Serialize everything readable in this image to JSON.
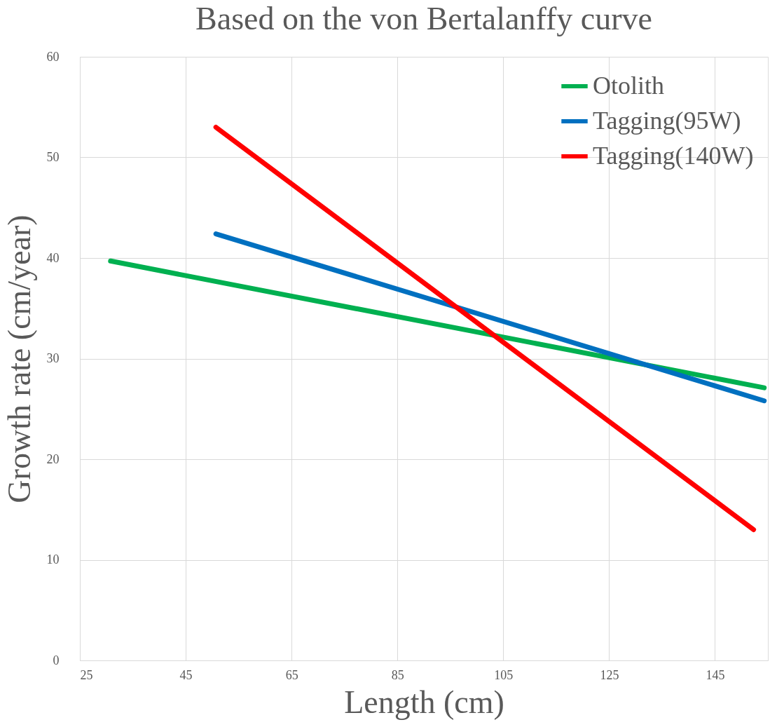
{
  "chart_data": {
    "type": "line",
    "title": "Based on the von Bertalanffy curve",
    "xlabel": "Length (cm)",
    "ylabel": "Growth rate (cm/year)",
    "xlim": [
      25,
      155
    ],
    "xticks": [
      25,
      45,
      65,
      85,
      105,
      125,
      145
    ],
    "ylim": [
      0,
      60
    ],
    "yticks": [
      0,
      10,
      20,
      30,
      40,
      50,
      60
    ],
    "grid": true,
    "legend": "top right",
    "marker": "none",
    "line_style": "solid",
    "series": [
      {
        "name": "Otolith",
        "color": "#00b050",
        "x": [
          30.8,
          154.3
        ],
        "values": [
          39.7,
          27.1
        ]
      },
      {
        "name": "Tagging(95W)",
        "color": "#0070c0",
        "x": [
          50.7,
          154.3
        ],
        "values": [
          42.4,
          25.8
        ]
      },
      {
        "name": "Tagging(140W)",
        "color": "#ff0000",
        "x": [
          50.7,
          152.3
        ],
        "values": [
          53.0,
          13.0
        ]
      }
    ]
  }
}
